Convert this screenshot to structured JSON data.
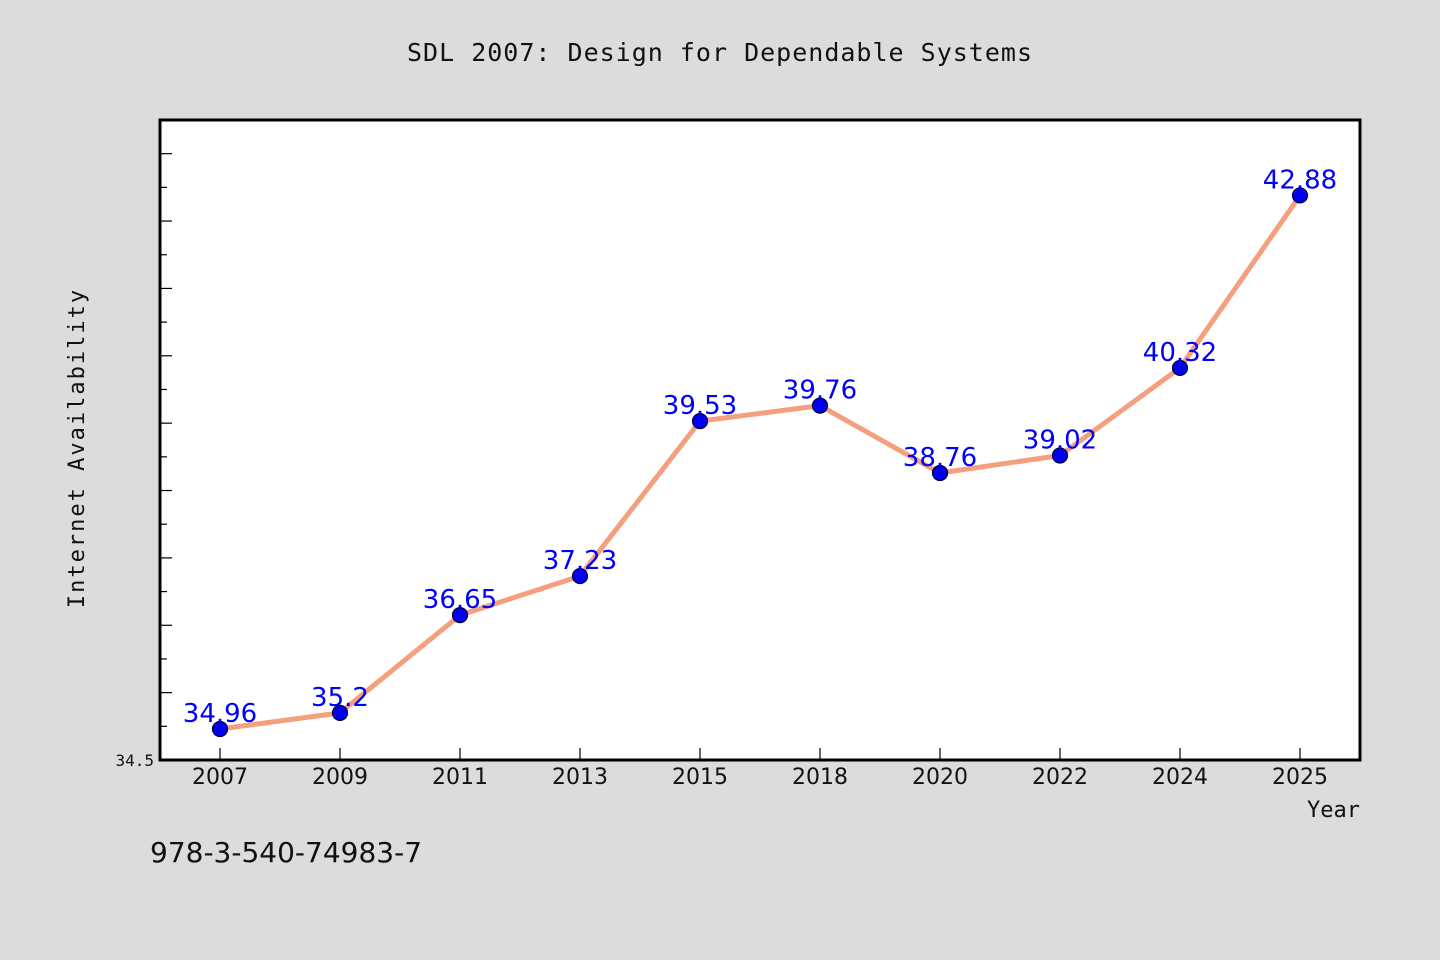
{
  "chart_data": {
    "type": "line",
    "title": "SDL 2007: Design for Dependable Systems",
    "xlabel": "Year",
    "ylabel": "Internet Availability",
    "categories": [
      "2007",
      "2009",
      "2011",
      "2013",
      "2015",
      "2018",
      "2020",
      "2022",
      "2024",
      "2025"
    ],
    "series": [
      {
        "values": [
          34.96,
          35.2,
          36.65,
          37.23,
          39.53,
          39.76,
          38.76,
          39.02,
          40.32,
          42.88
        ],
        "value_labels": [
          "34.96",
          "35.2",
          "36.65",
          "37.23",
          "39.53",
          "39.76",
          "38.76",
          "39.02",
          "40.32",
          "42.88"
        ],
        "line_color": "#f4a07e",
        "marker_color": "#0000ee",
        "label_color": "#0000ff"
      }
    ],
    "ylim": [
      34.5,
      44.0
    ],
    "ytick_labels": [
      "34.5"
    ],
    "grid": false,
    "legend": "none",
    "background_color": "#dcdcdc",
    "plot_background_color": "#ffffff",
    "annotation": "978-3-540-74983-7"
  }
}
